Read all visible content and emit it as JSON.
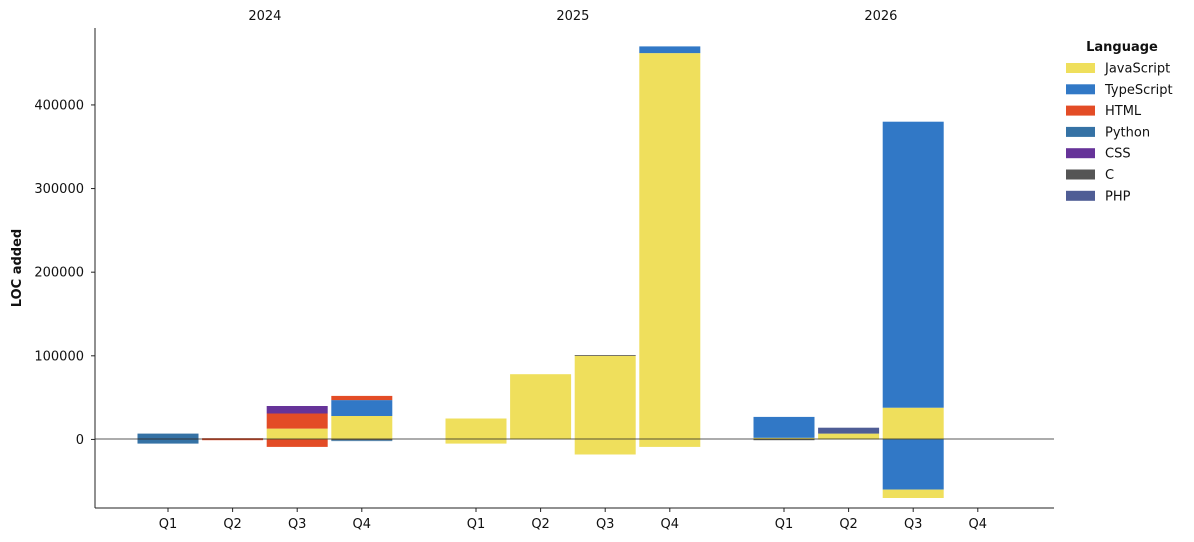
{
  "chart_data": {
    "type": "bar",
    "stacked": true,
    "groups": [
      "2024",
      "2025",
      "2026"
    ],
    "quarters": [
      "Q1",
      "Q2",
      "Q3",
      "Q4"
    ],
    "ylabel": "LOC added",
    "ylim": [
      -82000,
      492000
    ],
    "yticks": [
      0,
      100000,
      200000,
      300000,
      400000
    ],
    "legend": {
      "title": "Language",
      "placement": "right",
      "items": [
        {
          "name": "JavaScript",
          "color": "#efdf5c"
        },
        {
          "name": "TypeScript",
          "color": "#3178c6"
        },
        {
          "name": "HTML",
          "color": "#e34c26"
        },
        {
          "name": "Python",
          "color": "#3572a5"
        },
        {
          "name": "CSS",
          "color": "#663399"
        },
        {
          "name": "C",
          "color": "#555555"
        },
        {
          "name": "PHP",
          "color": "#4f5d95"
        }
      ]
    },
    "bars": [
      {
        "year": "2024",
        "quarter": "Q1",
        "segments": [
          {
            "series": "C",
            "value": 1000
          },
          {
            "series": "Python",
            "value": 6000
          },
          {
            "series": "Python",
            "value": -5000
          }
        ]
      },
      {
        "year": "2024",
        "quarter": "Q2",
        "segments": [
          {
            "series": "HTML",
            "value": 1500
          },
          {
            "series": "HTML",
            "value": -500
          }
        ]
      },
      {
        "year": "2024",
        "quarter": "Q3",
        "segments": [
          {
            "series": "JavaScript",
            "value": 13000
          },
          {
            "series": "HTML",
            "value": 18000
          },
          {
            "series": "CSS",
            "value": 9000
          },
          {
            "series": "HTML",
            "value": -9000
          }
        ]
      },
      {
        "year": "2024",
        "quarter": "Q4",
        "segments": [
          {
            "series": "JavaScript",
            "value": 28000
          },
          {
            "series": "TypeScript",
            "value": 19000
          },
          {
            "series": "HTML",
            "value": 5000
          },
          {
            "series": "C",
            "value": -1000
          },
          {
            "series": "Python",
            "value": -1000
          }
        ]
      },
      {
        "year": "2025",
        "quarter": "Q1",
        "segments": [
          {
            "series": "JavaScript",
            "value": 25000
          },
          {
            "series": "JavaScript",
            "value": -5000
          }
        ]
      },
      {
        "year": "2025",
        "quarter": "Q2",
        "segments": [
          {
            "series": "JavaScript",
            "value": 78000
          }
        ]
      },
      {
        "year": "2025",
        "quarter": "Q3",
        "segments": [
          {
            "series": "JavaScript",
            "value": 100000
          },
          {
            "series": "C",
            "value": 1000
          },
          {
            "series": "JavaScript",
            "value": -18000
          }
        ]
      },
      {
        "year": "2025",
        "quarter": "Q4",
        "segments": [
          {
            "series": "JavaScript",
            "value": 462000
          },
          {
            "series": "TypeScript",
            "value": 8000
          },
          {
            "series": "JavaScript",
            "value": -9000
          }
        ]
      },
      {
        "year": "2026",
        "quarter": "Q1",
        "segments": [
          {
            "series": "JavaScript",
            "value": 2000
          },
          {
            "series": "TypeScript",
            "value": 25000
          },
          {
            "series": "C",
            "value": -1000
          }
        ]
      },
      {
        "year": "2026",
        "quarter": "Q2",
        "segments": [
          {
            "series": "JavaScript",
            "value": 7000
          },
          {
            "series": "PHP",
            "value": 7000
          }
        ]
      },
      {
        "year": "2026",
        "quarter": "Q3",
        "segments": [
          {
            "series": "JavaScript",
            "value": 38000
          },
          {
            "series": "TypeScript",
            "value": 342000
          },
          {
            "series": "TypeScript",
            "value": -60000
          },
          {
            "series": "JavaScript",
            "value": -10000
          }
        ]
      },
      {
        "year": "2026",
        "quarter": "Q4",
        "segments": []
      }
    ]
  }
}
